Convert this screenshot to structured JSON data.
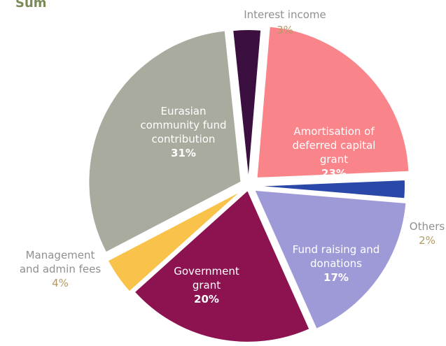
{
  "title_fragment": "Sum",
  "chart_data": {
    "type": "pie",
    "slices": [
      {
        "key": "interest",
        "label_lines": [
          "Interest income"
        ],
        "percent_text": "3%",
        "value": 3,
        "color": "#3b1040"
      },
      {
        "key": "amortisation",
        "label_lines": [
          "Amortisation of",
          "deferred capital",
          "grant"
        ],
        "percent_text": "23%",
        "value": 23,
        "color": "#f9848a"
      },
      {
        "key": "others",
        "label_lines": [
          "Others"
        ],
        "percent_text": "2%",
        "value": 2,
        "color": "#2a48a8"
      },
      {
        "key": "fund-raising",
        "label_lines": [
          "Fund raising and",
          "donations"
        ],
        "percent_text": "17%",
        "value": 17,
        "color": "#9e9ad8"
      },
      {
        "key": "government",
        "label_lines": [
          "Government",
          "grant"
        ],
        "percent_text": "20%",
        "value": 20,
        "color": "#8c1350"
      },
      {
        "key": "management",
        "label_lines": [
          "Management",
          "and admin fees"
        ],
        "percent_text": "4%",
        "value": 4,
        "color": "#f9c24a"
      },
      {
        "key": "eurasian",
        "label_lines": [
          "Eurasian",
          "community fund",
          "contribution"
        ],
        "percent_text": "31%",
        "value": 31,
        "color": "#a9ab9e"
      }
    ]
  }
}
